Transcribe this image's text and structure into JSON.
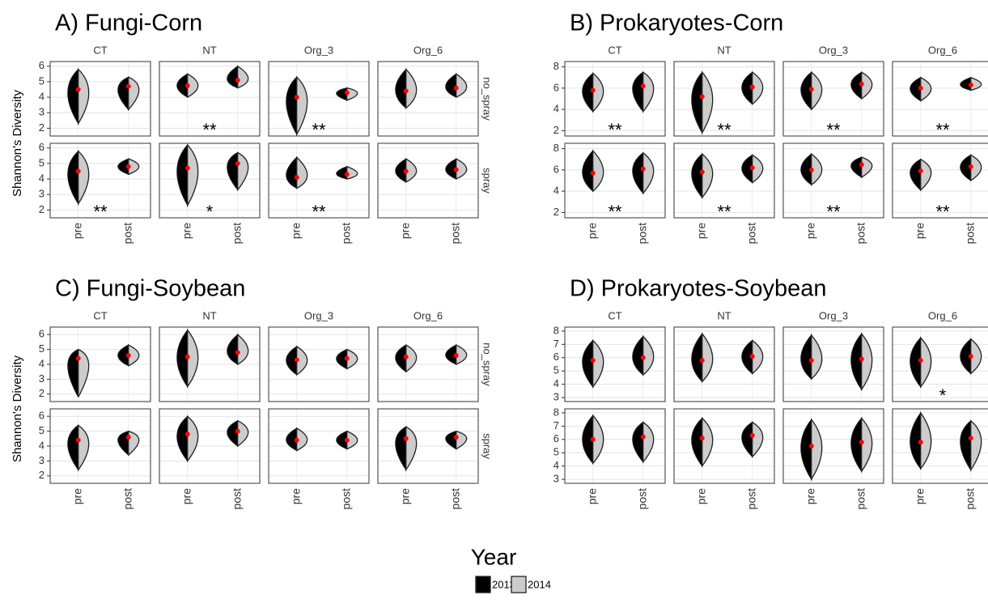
{
  "chart_data": [
    {
      "type": "violin",
      "title": "A) Fungi-Corn",
      "ylabel": "Shannon's Diversity",
      "columns": [
        "CT",
        "NT",
        "Org_3",
        "Org_6"
      ],
      "rows": [
        "no_spray",
        "spray"
      ],
      "categories": [
        "pre",
        "post"
      ],
      "ylim": [
        1.5,
        6.3
      ],
      "yticks": [
        2,
        3,
        4,
        5,
        6
      ],
      "cells": [
        [
          {
            "means": [
              4.5,
              4.7
            ],
            "mins": [
              2.3,
              3.2
            ],
            "maxs": [
              5.8,
              5.3
            ]
          },
          {
            "means": [
              4.75,
              5.1
            ],
            "mins": [
              4.0,
              4.6
            ],
            "maxs": [
              5.5,
              6.0
            ],
            "annotation": "**"
          },
          {
            "means": [
              4.0,
              4.3
            ],
            "mins": [
              1.6,
              3.8
            ],
            "maxs": [
              5.3,
              4.6
            ],
            "annotation": "**"
          },
          {
            "means": [
              4.4,
              4.6
            ],
            "mins": [
              3.3,
              4.0
            ],
            "maxs": [
              5.8,
              5.5
            ]
          }
        ],
        [
          {
            "means": [
              4.5,
              4.8
            ],
            "mins": [
              2.4,
              4.3
            ],
            "maxs": [
              5.8,
              5.3
            ],
            "annotation": "**"
          },
          {
            "means": [
              4.7,
              5.0
            ],
            "mins": [
              2.3,
              3.3
            ],
            "maxs": [
              6.2,
              5.7
            ],
            "annotation": "*"
          },
          {
            "means": [
              4.1,
              4.3
            ],
            "mins": [
              3.4,
              4.0
            ],
            "maxs": [
              5.4,
              4.8
            ],
            "annotation": "**"
          },
          {
            "means": [
              4.5,
              4.6
            ],
            "mins": [
              3.8,
              4.0
            ],
            "maxs": [
              5.3,
              5.3
            ]
          }
        ]
      ]
    },
    {
      "type": "violin",
      "title": "B) Prokaryotes-Corn",
      "columns": [
        "CT",
        "NT",
        "Org_3",
        "Org_6"
      ],
      "categories": [
        "pre",
        "post"
      ],
      "ylim": [
        1.5,
        8.5
      ],
      "yticks": [
        2,
        4,
        6,
        8
      ],
      "cells": [
        [
          {
            "means": [
              5.8,
              6.2
            ],
            "mins": [
              3.8,
              3.8
            ],
            "maxs": [
              7.4,
              7.5
            ],
            "annotation": "**"
          },
          {
            "means": [
              5.2,
              6.1
            ],
            "mins": [
              1.8,
              4.5
            ],
            "maxs": [
              7.5,
              7.5
            ],
            "annotation": "**"
          },
          {
            "means": [
              5.9,
              6.4
            ],
            "mins": [
              4.0,
              5.0
            ],
            "maxs": [
              7.5,
              7.5
            ],
            "annotation": "**"
          },
          {
            "means": [
              6.0,
              6.3
            ],
            "mins": [
              4.8,
              5.8
            ],
            "maxs": [
              7.0,
              7.0
            ],
            "annotation": "**"
          }
        ],
        [
          {
            "means": [
              5.7,
              6.1
            ],
            "mins": [
              4.0,
              3.8
            ],
            "maxs": [
              7.8,
              7.6
            ],
            "annotation": "**"
          },
          {
            "means": [
              5.8,
              6.2
            ],
            "mins": [
              3.4,
              4.8
            ],
            "maxs": [
              7.5,
              7.4
            ],
            "annotation": "**"
          },
          {
            "means": [
              6.0,
              6.5
            ],
            "mins": [
              4.6,
              5.3
            ],
            "maxs": [
              7.5,
              7.2
            ],
            "annotation": "**"
          },
          {
            "means": [
              5.9,
              6.3
            ],
            "mins": [
              4.1,
              5.0
            ],
            "maxs": [
              7.0,
              7.4
            ],
            "annotation": "**"
          }
        ]
      ]
    },
    {
      "type": "violin",
      "title": "C) Fungi-Soybean",
      "ylabel": "Shannon's Diversity",
      "columns": [
        "CT",
        "NT",
        "Org_3",
        "Org_6"
      ],
      "rows": [
        "no_spray",
        "spray"
      ],
      "categories": [
        "pre",
        "post"
      ],
      "ylim": [
        1.5,
        6.5
      ],
      "yticks": [
        2,
        3,
        4,
        5,
        6
      ],
      "cells": [
        [
          {
            "means": [
              4.4,
              4.6
            ],
            "mins": [
              1.8,
              3.9
            ],
            "maxs": [
              5.0,
              5.3
            ]
          },
          {
            "means": [
              4.5,
              4.8
            ],
            "mins": [
              2.5,
              4.0
            ],
            "maxs": [
              6.3,
              6.0
            ]
          },
          {
            "means": [
              4.3,
              4.4
            ],
            "mins": [
              3.3,
              3.7
            ],
            "maxs": [
              5.2,
              5.0
            ]
          },
          {
            "means": [
              4.5,
              4.6
            ],
            "mins": [
              3.5,
              4.0
            ],
            "maxs": [
              5.3,
              5.3
            ]
          }
        ],
        [
          {
            "means": [
              4.4,
              4.6
            ],
            "mins": [
              2.4,
              3.4
            ],
            "maxs": [
              5.4,
              5.0
            ]
          },
          {
            "means": [
              4.8,
              5.0
            ],
            "mins": [
              3.0,
              4.0
            ],
            "maxs": [
              6.0,
              5.7
            ]
          },
          {
            "means": [
              4.4,
              4.4
            ],
            "mins": [
              3.7,
              3.8
            ],
            "maxs": [
              5.2,
              5.0
            ]
          },
          {
            "means": [
              4.5,
              4.6
            ],
            "mins": [
              2.4,
              3.8
            ],
            "maxs": [
              5.3,
              5.0
            ]
          }
        ]
      ]
    },
    {
      "type": "violin",
      "title": "D) Prokaryotes-Soybean",
      "columns": [
        "CT",
        "NT",
        "Org_3",
        "Org_6"
      ],
      "categories": [
        "pre",
        "post"
      ],
      "ylim": [
        2.7,
        8.3
      ],
      "yticks": [
        3,
        4,
        5,
        6,
        7,
        8
      ],
      "cells": [
        [
          {
            "means": [
              5.8,
              6.0
            ],
            "mins": [
              3.8,
              4.7
            ],
            "maxs": [
              7.3,
              7.6
            ]
          },
          {
            "means": [
              5.8,
              6.1
            ],
            "mins": [
              4.2,
              4.8
            ],
            "maxs": [
              7.8,
              7.3
            ]
          },
          {
            "means": [
              5.8,
              5.9
            ],
            "mins": [
              4.4,
              3.6
            ],
            "maxs": [
              7.7,
              7.8
            ]
          },
          {
            "means": [
              5.8,
              6.1
            ],
            "mins": [
              3.8,
              4.8
            ],
            "maxs": [
              7.5,
              7.4
            ],
            "annotation": "*"
          }
        ],
        [
          {
            "means": [
              6.0,
              6.2
            ],
            "mins": [
              4.2,
              4.3
            ],
            "maxs": [
              7.8,
              7.3
            ]
          },
          {
            "means": [
              6.1,
              6.3
            ],
            "mins": [
              4.0,
              4.7
            ],
            "maxs": [
              7.6,
              7.3
            ]
          },
          {
            "means": [
              5.5,
              5.8
            ],
            "mins": [
              3.0,
              3.6
            ],
            "maxs": [
              7.5,
              7.6
            ]
          },
          {
            "means": [
              5.8,
              6.1
            ],
            "mins": [
              3.8,
              3.7
            ],
            "maxs": [
              8.0,
              7.4
            ]
          }
        ]
      ]
    }
  ],
  "legend": {
    "title": "Year",
    "entries": [
      {
        "name": "2013",
        "color": "#000000"
      },
      {
        "name": "2014",
        "color": "#cccccc"
      }
    ]
  }
}
